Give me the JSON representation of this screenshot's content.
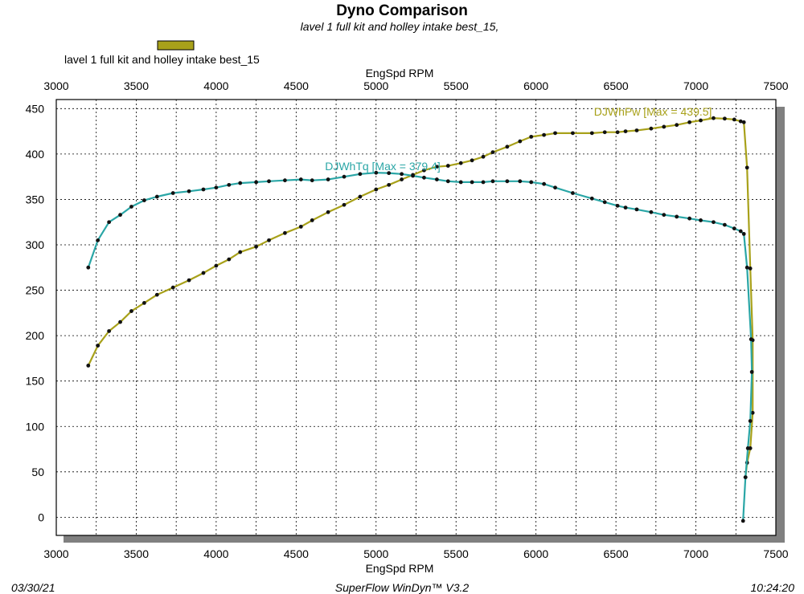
{
  "header": {
    "title": "Dyno Comparison",
    "subtitle": "lavel 1 full kit and holley intake best_15,"
  },
  "legend": {
    "label": "lavel 1 full kit and holley intake best_15",
    "swatch_color": "#a8a11a"
  },
  "footer": {
    "date": "03/30/21",
    "software": "SuperFlow WinDyn™ V3.2",
    "time": "10:24:20"
  },
  "chart_data": {
    "type": "line",
    "xlabel_top": "EngSpd  RPM",
    "xlabel_bottom": "EngSpd  RPM",
    "ylabel": "",
    "xlim": [
      3000,
      7500
    ],
    "ylim": [
      -20,
      460
    ],
    "x_ticks": [
      3000,
      3500,
      4000,
      4500,
      5000,
      5500,
      6000,
      6500,
      7000,
      7500
    ],
    "y_ticks": [
      0,
      50,
      100,
      150,
      200,
      250,
      300,
      350,
      400,
      450
    ],
    "grid": true,
    "series": [
      {
        "name": "DJWhPw",
        "annotation": "DJWhPw [Max = 439.5]",
        "color": "#a8a11a",
        "points": [
          [
            3200,
            167
          ],
          [
            3260,
            189
          ],
          [
            3330,
            205
          ],
          [
            3400,
            215
          ],
          [
            3470,
            227
          ],
          [
            3550,
            236
          ],
          [
            3630,
            245
          ],
          [
            3730,
            253
          ],
          [
            3830,
            261
          ],
          [
            3920,
            269
          ],
          [
            4000,
            277
          ],
          [
            4080,
            284
          ],
          [
            4150,
            292
          ],
          [
            4250,
            298
          ],
          [
            4330,
            305
          ],
          [
            4430,
            313
          ],
          [
            4530,
            320
          ],
          [
            4600,
            327
          ],
          [
            4700,
            336
          ],
          [
            4800,
            344
          ],
          [
            4900,
            353
          ],
          [
            5000,
            361
          ],
          [
            5080,
            366
          ],
          [
            5160,
            372
          ],
          [
            5230,
            377
          ],
          [
            5300,
            382
          ],
          [
            5380,
            386
          ],
          [
            5450,
            387
          ],
          [
            5530,
            390
          ],
          [
            5600,
            393
          ],
          [
            5670,
            397
          ],
          [
            5730,
            402
          ],
          [
            5820,
            408
          ],
          [
            5900,
            414
          ],
          [
            5970,
            419
          ],
          [
            6050,
            421
          ],
          [
            6120,
            423
          ],
          [
            6230,
            423
          ],
          [
            6350,
            423
          ],
          [
            6430,
            424
          ],
          [
            6510,
            424
          ],
          [
            6560,
            425
          ],
          [
            6630,
            426
          ],
          [
            6720,
            428
          ],
          [
            6800,
            430
          ],
          [
            6880,
            432
          ],
          [
            6960,
            435
          ],
          [
            7030,
            437
          ],
          [
            7110,
            439.5
          ],
          [
            7180,
            439
          ],
          [
            7240,
            438
          ],
          [
            7280,
            436
          ],
          [
            7300,
            435
          ],
          [
            7320,
            385
          ],
          [
            7340,
            274
          ],
          [
            7355,
            195
          ],
          [
            7355,
            115
          ],
          [
            7340,
            76
          ],
          [
            7320,
            60
          ],
          [
            7310,
            44
          ]
        ]
      },
      {
        "name": "DJWhTq",
        "annotation": "DJWhTq [Max = 379.4]",
        "color": "#2aa6a6",
        "points": [
          [
            3200,
            275
          ],
          [
            3260,
            305
          ],
          [
            3330,
            325
          ],
          [
            3400,
            333
          ],
          [
            3470,
            342
          ],
          [
            3550,
            349
          ],
          [
            3630,
            353
          ],
          [
            3730,
            357
          ],
          [
            3830,
            359
          ],
          [
            3920,
            361
          ],
          [
            4000,
            363
          ],
          [
            4080,
            366
          ],
          [
            4150,
            368
          ],
          [
            4250,
            369
          ],
          [
            4330,
            370
          ],
          [
            4430,
            371
          ],
          [
            4530,
            372
          ],
          [
            4600,
            371
          ],
          [
            4700,
            372
          ],
          [
            4800,
            375
          ],
          [
            4900,
            378
          ],
          [
            5000,
            379.4
          ],
          [
            5080,
            379
          ],
          [
            5160,
            378
          ],
          [
            5230,
            376
          ],
          [
            5300,
            374
          ],
          [
            5380,
            372
          ],
          [
            5450,
            370
          ],
          [
            5530,
            369
          ],
          [
            5600,
            369
          ],
          [
            5670,
            369
          ],
          [
            5730,
            370
          ],
          [
            5820,
            370
          ],
          [
            5900,
            370
          ],
          [
            5970,
            369
          ],
          [
            6050,
            367
          ],
          [
            6120,
            363
          ],
          [
            6230,
            357
          ],
          [
            6350,
            351
          ],
          [
            6430,
            347
          ],
          [
            6510,
            343
          ],
          [
            6560,
            341
          ],
          [
            6630,
            339
          ],
          [
            6720,
            336
          ],
          [
            6800,
            333
          ],
          [
            6880,
            331
          ],
          [
            6960,
            329
          ],
          [
            7030,
            327
          ],
          [
            7110,
            325
          ],
          [
            7180,
            322
          ],
          [
            7240,
            318
          ],
          [
            7280,
            315
          ],
          [
            7300,
            312
          ],
          [
            7320,
            275
          ],
          [
            7345,
            196
          ],
          [
            7350,
            160
          ],
          [
            7340,
            106
          ],
          [
            7325,
            76
          ],
          [
            7310,
            44
          ],
          [
            7295,
            -4
          ]
        ]
      }
    ]
  }
}
